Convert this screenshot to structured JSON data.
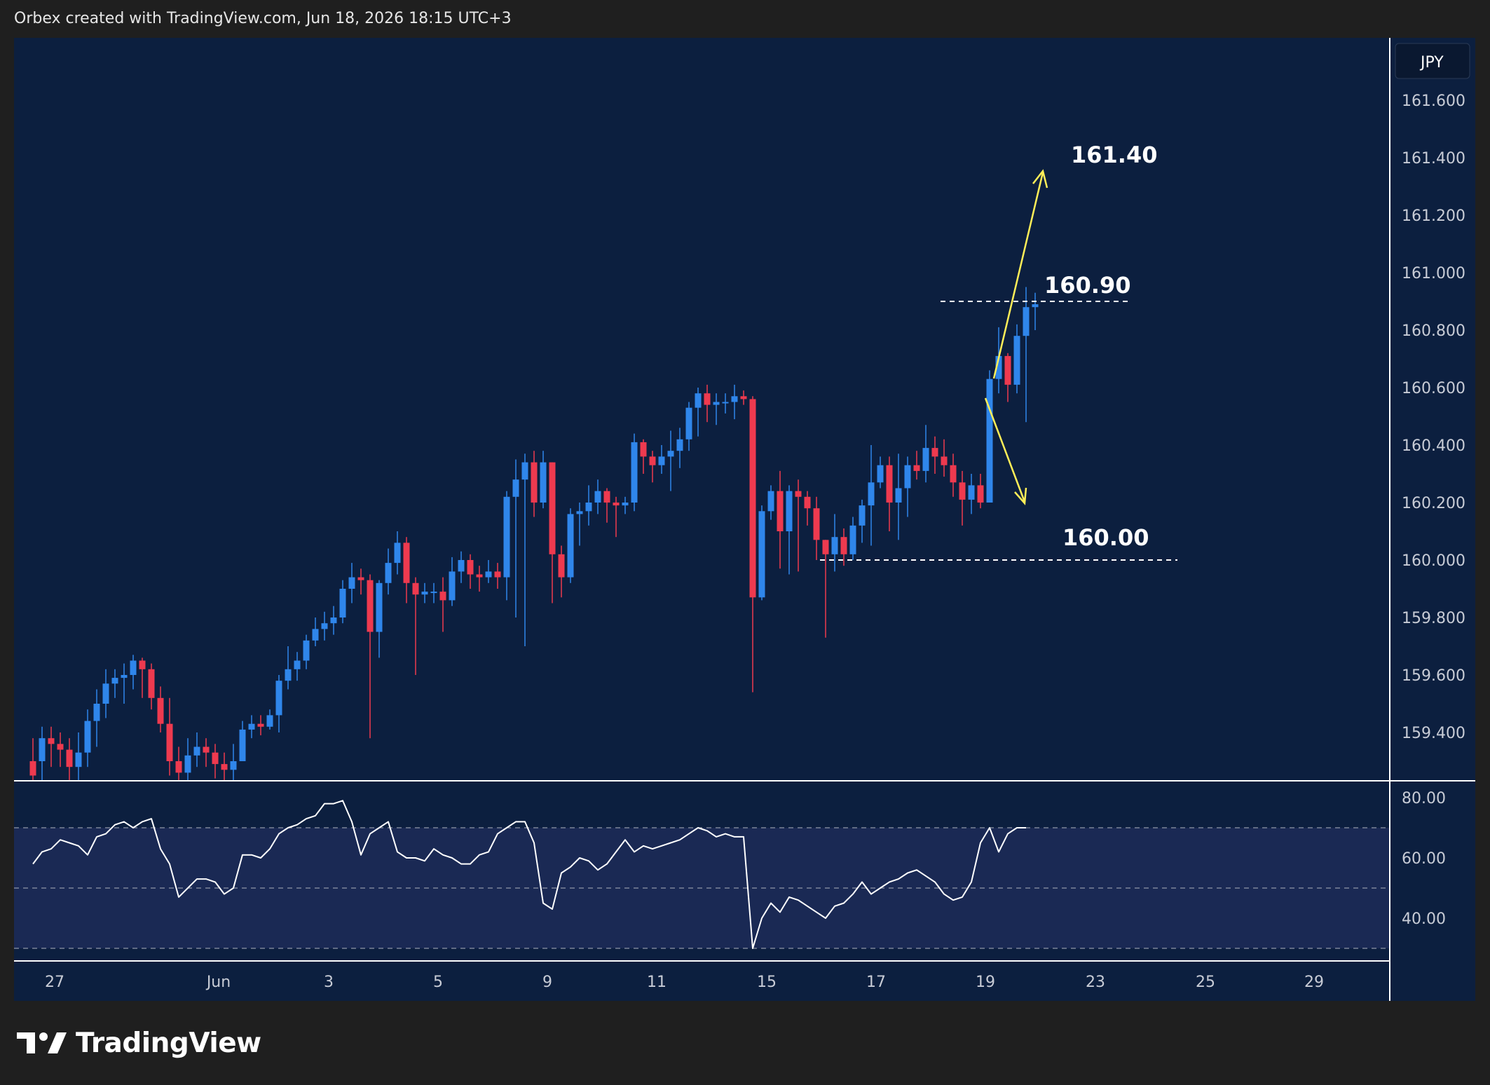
{
  "header": {
    "text": "Orbex created with TradingView.com, Jun 18, 2026 18:15 UTC+3"
  },
  "brand": {
    "name": "TradingView"
  },
  "chart_data": {
    "type": "candlestick",
    "currency": "JPY",
    "ylim": [
      159.2,
      161.8
    ],
    "y_ticks": [
      "161.600",
      "161.400",
      "161.200",
      "161.000",
      "160.800",
      "160.600",
      "160.400",
      "160.200",
      "160.000",
      "159.800",
      "159.600",
      "159.400"
    ],
    "x_ticks": [
      "27",
      "Jun",
      "3",
      "5",
      "9",
      "11",
      "15",
      "17",
      "19",
      "23",
      "25",
      "29"
    ],
    "colors": {
      "up": "#2f86eb",
      "down": "#ee3a4f",
      "background": "#0c1f3f",
      "annotation_arrow": "#ffee58",
      "rsi_line": "#ffffff"
    },
    "candles": [
      [
        159.3,
        159.25,
        159.38,
        159.22
      ],
      [
        159.3,
        159.38,
        159.42,
        159.2
      ],
      [
        159.38,
        159.36,
        159.42,
        159.28
      ],
      [
        159.36,
        159.34,
        159.4,
        159.28
      ],
      [
        159.34,
        159.28,
        159.38,
        159.22
      ],
      [
        159.28,
        159.33,
        159.4,
        159.2
      ],
      [
        159.33,
        159.44,
        159.48,
        159.28
      ],
      [
        159.44,
        159.5,
        159.55,
        159.35
      ],
      [
        159.5,
        159.57,
        159.62,
        159.45
      ],
      [
        159.57,
        159.59,
        159.62,
        159.52
      ],
      [
        159.59,
        159.6,
        159.64,
        159.5
      ],
      [
        159.6,
        159.65,
        159.67,
        159.55
      ],
      [
        159.65,
        159.62,
        159.66,
        159.52
      ],
      [
        159.62,
        159.52,
        159.64,
        159.48
      ],
      [
        159.52,
        159.43,
        159.56,
        159.4
      ],
      [
        159.43,
        159.3,
        159.52,
        159.25
      ],
      [
        159.3,
        159.26,
        159.35,
        159.22
      ],
      [
        159.26,
        159.32,
        159.38,
        159.22
      ],
      [
        159.32,
        159.35,
        159.4,
        159.28
      ],
      [
        159.35,
        159.33,
        159.38,
        159.28
      ],
      [
        159.33,
        159.29,
        159.36,
        159.24
      ],
      [
        159.29,
        159.27,
        159.33,
        159.22
      ],
      [
        159.27,
        159.3,
        159.36,
        159.22
      ],
      [
        159.3,
        159.41,
        159.44,
        159.33
      ],
      [
        159.41,
        159.43,
        159.46,
        159.38
      ],
      [
        159.43,
        159.42,
        159.46,
        159.39
      ],
      [
        159.42,
        159.46,
        159.48,
        159.41
      ],
      [
        159.46,
        159.58,
        159.6,
        159.4
      ],
      [
        159.58,
        159.62,
        159.7,
        159.55
      ],
      [
        159.62,
        159.65,
        159.68,
        159.58
      ],
      [
        159.65,
        159.72,
        159.74,
        159.62
      ],
      [
        159.72,
        159.76,
        159.8,
        159.7
      ],
      [
        159.76,
        159.78,
        159.82,
        159.72
      ],
      [
        159.78,
        159.8,
        159.84,
        159.74
      ],
      [
        159.8,
        159.9,
        159.93,
        159.78
      ],
      [
        159.9,
        159.94,
        159.99,
        159.85
      ],
      [
        159.94,
        159.93,
        159.97,
        159.88
      ],
      [
        159.93,
        159.75,
        159.95,
        159.38
      ],
      [
        159.75,
        159.92,
        159.93,
        159.66
      ],
      [
        159.92,
        159.99,
        160.04,
        159.88
      ],
      [
        159.99,
        160.06,
        160.1,
        159.95
      ],
      [
        160.06,
        159.92,
        160.08,
        159.85
      ],
      [
        159.92,
        159.88,
        159.94,
        159.6
      ],
      [
        159.88,
        159.89,
        159.92,
        159.85
      ],
      [
        159.89,
        159.89,
        159.92,
        159.85
      ],
      [
        159.89,
        159.86,
        159.94,
        159.75
      ],
      [
        159.86,
        159.96,
        160.01,
        159.84
      ],
      [
        159.96,
        160.0,
        160.03,
        159.92
      ],
      [
        160.0,
        159.95,
        160.02,
        159.9
      ],
      [
        159.95,
        159.94,
        159.98,
        159.89
      ],
      [
        159.94,
        159.96,
        160.0,
        159.92
      ],
      [
        159.96,
        159.94,
        159.99,
        159.9
      ],
      [
        159.94,
        160.22,
        160.24,
        159.86
      ],
      [
        160.22,
        160.28,
        160.35,
        159.8
      ],
      [
        160.28,
        160.34,
        160.37,
        159.7
      ],
      [
        160.34,
        160.2,
        160.38,
        160.15
      ],
      [
        160.2,
        160.34,
        160.38,
        160.18
      ],
      [
        160.34,
        160.02,
        160.34,
        159.85
      ],
      [
        160.02,
        159.94,
        160.05,
        159.87
      ],
      [
        159.94,
        160.16,
        160.18,
        159.92
      ],
      [
        160.16,
        160.17,
        160.2,
        160.05
      ],
      [
        160.17,
        160.2,
        160.26,
        160.12
      ],
      [
        160.2,
        160.24,
        160.28,
        160.16
      ],
      [
        160.24,
        160.2,
        160.25,
        160.13
      ],
      [
        160.2,
        160.19,
        160.22,
        160.08
      ],
      [
        160.19,
        160.2,
        160.22,
        160.16
      ],
      [
        160.2,
        160.41,
        160.44,
        160.17
      ],
      [
        160.41,
        160.36,
        160.42,
        160.3
      ],
      [
        160.36,
        160.33,
        160.38,
        160.27
      ],
      [
        160.33,
        160.36,
        160.4,
        160.3
      ],
      [
        160.36,
        160.38,
        160.45,
        160.24
      ],
      [
        160.38,
        160.42,
        160.46,
        160.32
      ],
      [
        160.42,
        160.53,
        160.55,
        160.38
      ],
      [
        160.53,
        160.58,
        160.6,
        160.43
      ],
      [
        160.58,
        160.54,
        160.61,
        160.48
      ],
      [
        160.54,
        160.55,
        160.58,
        160.47
      ],
      [
        160.55,
        160.55,
        160.58,
        160.51
      ],
      [
        160.55,
        160.57,
        160.61,
        160.49
      ],
      [
        160.57,
        160.56,
        160.59,
        160.54
      ],
      [
        160.56,
        159.87,
        160.57,
        159.54
      ],
      [
        159.87,
        160.17,
        160.19,
        159.86
      ],
      [
        160.17,
        160.24,
        160.26,
        160.14
      ],
      [
        160.24,
        160.1,
        160.31,
        159.97
      ],
      [
        160.1,
        160.24,
        160.26,
        159.95
      ],
      [
        160.24,
        160.22,
        160.28,
        159.96
      ],
      [
        160.22,
        160.18,
        160.24,
        160.12
      ],
      [
        160.18,
        160.07,
        160.22,
        160.0
      ],
      [
        160.07,
        160.02,
        160.07,
        159.73
      ],
      [
        160.02,
        160.08,
        160.16,
        159.96
      ],
      [
        160.08,
        160.02,
        160.11,
        159.98
      ],
      [
        160.02,
        160.12,
        160.15,
        160.0
      ],
      [
        160.12,
        160.19,
        160.21,
        160.06
      ],
      [
        160.19,
        160.27,
        160.4,
        160.05
      ],
      [
        160.27,
        160.33,
        160.36,
        160.25
      ],
      [
        160.33,
        160.2,
        160.36,
        160.1
      ],
      [
        160.2,
        160.25,
        160.37,
        160.07
      ],
      [
        160.25,
        160.33,
        160.36,
        160.15
      ],
      [
        160.33,
        160.31,
        160.38,
        160.28
      ],
      [
        160.31,
        160.39,
        160.47,
        160.27
      ],
      [
        160.39,
        160.36,
        160.43,
        160.3
      ],
      [
        160.36,
        160.33,
        160.42,
        160.29
      ],
      [
        160.33,
        160.27,
        160.37,
        160.22
      ],
      [
        160.27,
        160.21,
        160.31,
        160.12
      ],
      [
        160.21,
        160.26,
        160.3,
        160.16
      ],
      [
        160.26,
        160.2,
        160.3,
        160.18
      ],
      [
        160.2,
        160.63,
        160.66,
        160.2
      ],
      [
        160.63,
        160.71,
        160.81,
        160.58
      ],
      [
        160.71,
        160.61,
        160.72,
        160.55
      ],
      [
        160.61,
        160.78,
        160.82,
        160.58
      ],
      [
        160.78,
        160.88,
        160.95,
        160.48
      ],
      [
        160.88,
        160.89,
        160.93,
        160.8
      ]
    ],
    "rsi": {
      "ylim": [
        20,
        90
      ],
      "y_ticks": [
        "80.00",
        "60.00",
        "40.00"
      ],
      "band": [
        30,
        70
      ],
      "mid": 50,
      "values": [
        58,
        62,
        63,
        66,
        65,
        64,
        61,
        67,
        68,
        71,
        72,
        70,
        72,
        73,
        63,
        58,
        47,
        50,
        53,
        53,
        52,
        48,
        50,
        61,
        61,
        60,
        63,
        68,
        70,
        71,
        73,
        74,
        78,
        78,
        79,
        72,
        61,
        68,
        70,
        72,
        62,
        60,
        60,
        59,
        63,
        61,
        60,
        58,
        58,
        61,
        62,
        68,
        70,
        72,
        72,
        65,
        45,
        43,
        55,
        57,
        60,
        59,
        56,
        58,
        62,
        66,
        62,
        64,
        63,
        64,
        65,
        66,
        68,
        70,
        69,
        67,
        68,
        67,
        67,
        30,
        40,
        45,
        42,
        47,
        46,
        44,
        42,
        40,
        44,
        45,
        48,
        52,
        48,
        50,
        52,
        53,
        55,
        56,
        54,
        52,
        48,
        46,
        47,
        52,
        65,
        70,
        62,
        68,
        70,
        70
      ]
    },
    "annotations": {
      "levels": [
        {
          "price": 160.9,
          "label": "160.90"
        },
        {
          "price": 160.0,
          "label": "160.00"
        }
      ],
      "target_up": {
        "label": "161.40"
      }
    }
  }
}
